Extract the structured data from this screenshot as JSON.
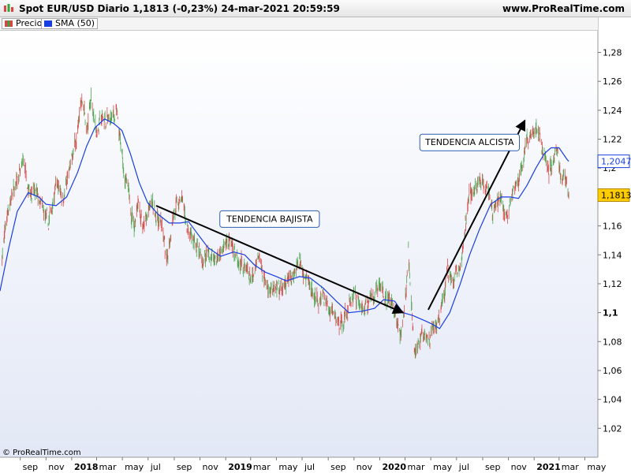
{
  "header": {
    "title": "Spot EUR/USD Diario 1,1813 (-0,23%) 24-mar-2021 20:59:59",
    "site": "www.ProRealTime.com"
  },
  "legend": [
    {
      "label": "Precio",
      "color": "#5a9e5a",
      "icon": "candlestick-icon"
    },
    {
      "label": "SMA (50)",
      "color": "#1a3fe0",
      "icon": "line-icon"
    }
  ],
  "copyright": "© ProRealTime.com",
  "chart_data": {
    "type": "line",
    "y_axis_side": "right",
    "ylim": [
      1.0,
      1.295
    ],
    "grid": false,
    "y_ticks": [
      {
        "v": 1.28,
        "label": "1,28"
      },
      {
        "v": 1.26,
        "label": "1,26"
      },
      {
        "v": 1.24,
        "label": "1,24"
      },
      {
        "v": 1.22,
        "label": "1,22"
      },
      {
        "v": 1.2,
        "label": "1,2"
      },
      {
        "v": 1.18,
        "label": "1,18"
      },
      {
        "v": 1.16,
        "label": "1,16"
      },
      {
        "v": 1.14,
        "label": "1,14"
      },
      {
        "v": 1.12,
        "label": "1,12"
      },
      {
        "v": 1.1,
        "label": "1,1",
        "bold": true
      },
      {
        "v": 1.08,
        "label": "1,08"
      },
      {
        "v": 1.06,
        "label": "1,06"
      },
      {
        "v": 1.04,
        "label": "1,04"
      },
      {
        "v": 1.02,
        "label": "1,02"
      }
    ],
    "x_ticks": [
      {
        "t": "2017-09",
        "label": "sep"
      },
      {
        "t": "2017-11",
        "label": "nov"
      },
      {
        "t": "2018-01",
        "label": "2018",
        "bold": true
      },
      {
        "t": "2018-03",
        "label": "mar"
      },
      {
        "t": "2018-05",
        "label": "may"
      },
      {
        "t": "2018-07",
        "label": "jul"
      },
      {
        "t": "2018-09",
        "label": "sep"
      },
      {
        "t": "2018-11",
        "label": "nov"
      },
      {
        "t": "2019-01",
        "label": "2019",
        "bold": true
      },
      {
        "t": "2019-03",
        "label": "mar"
      },
      {
        "t": "2019-05",
        "label": "may"
      },
      {
        "t": "2019-07",
        "label": "jul"
      },
      {
        "t": "2019-09",
        "label": "sep"
      },
      {
        "t": "2019-11",
        "label": "nov"
      },
      {
        "t": "2020-01",
        "label": "2020",
        "bold": true
      },
      {
        "t": "2020-03",
        "label": "mar"
      },
      {
        "t": "2020-05",
        "label": "may"
      },
      {
        "t": "2020-07",
        "label": "jul"
      },
      {
        "t": "2020-09",
        "label": "sep"
      },
      {
        "t": "2020-11",
        "label": "nov"
      },
      {
        "t": "2021-01",
        "label": "2021",
        "bold": true
      },
      {
        "t": "2021-03",
        "label": "mar"
      },
      {
        "t": "2021-05",
        "label": "may"
      }
    ],
    "x_range": [
      "2017-07-15",
      "2021-06-01"
    ],
    "price_path": [
      [
        "2017-07-20",
        1.14
      ],
      [
        "2017-08-05",
        1.175
      ],
      [
        "2017-08-25",
        1.19
      ],
      [
        "2017-09-08",
        1.205
      ],
      [
        "2017-09-25",
        1.185
      ],
      [
        "2017-10-10",
        1.18
      ],
      [
        "2017-10-25",
        1.17
      ],
      [
        "2017-11-07",
        1.16
      ],
      [
        "2017-11-25",
        1.19
      ],
      [
        "2017-12-12",
        1.18
      ],
      [
        "2017-12-29",
        1.2
      ],
      [
        "2018-01-15",
        1.225
      ],
      [
        "2018-01-26",
        1.25
      ],
      [
        "2018-02-08",
        1.225
      ],
      [
        "2018-02-16",
        1.25
      ],
      [
        "2018-03-01",
        1.225
      ],
      [
        "2018-03-15",
        1.235
      ],
      [
        "2018-03-30",
        1.232
      ],
      [
        "2018-04-17",
        1.238
      ],
      [
        "2018-04-28",
        1.212
      ],
      [
        "2018-05-10",
        1.19
      ],
      [
        "2018-05-29",
        1.16
      ],
      [
        "2018-06-07",
        1.18
      ],
      [
        "2018-06-20",
        1.158
      ],
      [
        "2018-07-09",
        1.175
      ],
      [
        "2018-07-20",
        1.168
      ],
      [
        "2018-08-02",
        1.16
      ],
      [
        "2018-08-15",
        1.134
      ],
      [
        "2018-08-28",
        1.168
      ],
      [
        "2018-09-20",
        1.178
      ],
      [
        "2018-10-05",
        1.152
      ],
      [
        "2018-10-20",
        1.15
      ],
      [
        "2018-11-05",
        1.135
      ],
      [
        "2018-11-20",
        1.14
      ],
      [
        "2018-12-10",
        1.138
      ],
      [
        "2019-01-10",
        1.15
      ],
      [
        "2019-01-28",
        1.14
      ],
      [
        "2019-02-15",
        1.13
      ],
      [
        "2019-03-07",
        1.122
      ],
      [
        "2019-03-20",
        1.137
      ],
      [
        "2019-04-05",
        1.122
      ],
      [
        "2019-04-25",
        1.113
      ],
      [
        "2019-05-20",
        1.116
      ],
      [
        "2019-06-10",
        1.128
      ],
      [
        "2019-06-25",
        1.138
      ],
      [
        "2019-07-15",
        1.123
      ],
      [
        "2019-08-01",
        1.108
      ],
      [
        "2019-08-20",
        1.112
      ],
      [
        "2019-09-05",
        1.1
      ],
      [
        "2019-09-30",
        1.092
      ],
      [
        "2019-10-15",
        1.1
      ],
      [
        "2019-11-01",
        1.115
      ],
      [
        "2019-11-20",
        1.102
      ],
      [
        "2019-12-05",
        1.108
      ],
      [
        "2019-12-31",
        1.12
      ],
      [
        "2020-01-15",
        1.11
      ],
      [
        "2020-02-03",
        1.105
      ],
      [
        "2020-02-20",
        1.08
      ],
      [
        "2020-03-05",
        1.12
      ],
      [
        "2020-03-09",
        1.14
      ],
      [
        "2020-03-23",
        1.07
      ],
      [
        "2020-04-05",
        1.085
      ],
      [
        "2020-04-25",
        1.08
      ],
      [
        "2020-05-15",
        1.09
      ],
      [
        "2020-06-01",
        1.11
      ],
      [
        "2020-06-10",
        1.13
      ],
      [
        "2020-06-25",
        1.12
      ],
      [
        "2020-07-15",
        1.14
      ],
      [
        "2020-07-31",
        1.18
      ],
      [
        "2020-08-15",
        1.185
      ],
      [
        "2020-08-31",
        1.195
      ],
      [
        "2020-09-15",
        1.185
      ],
      [
        "2020-09-25",
        1.165
      ],
      [
        "2020-10-10",
        1.18
      ],
      [
        "2020-10-30",
        1.165
      ],
      [
        "2020-11-10",
        1.182
      ],
      [
        "2020-11-25",
        1.192
      ],
      [
        "2020-12-10",
        1.212
      ],
      [
        "2020-12-30",
        1.228
      ],
      [
        "2021-01-06",
        1.232
      ],
      [
        "2021-01-20",
        1.215
      ],
      [
        "2021-02-05",
        1.198
      ],
      [
        "2021-02-25",
        1.212
      ],
      [
        "2021-03-05",
        1.192
      ],
      [
        "2021-03-15",
        1.195
      ],
      [
        "2021-03-24",
        1.1813
      ]
    ],
    "series": [
      {
        "name": "SMA (50)",
        "color": "#1a3fe0",
        "points": [
          [
            "2017-07-15",
            1.115
          ],
          [
            "2017-08-05",
            1.145
          ],
          [
            "2017-08-25",
            1.17
          ],
          [
            "2017-09-20",
            1.183
          ],
          [
            "2017-10-15",
            1.18
          ],
          [
            "2017-11-01",
            1.175
          ],
          [
            "2017-11-25",
            1.174
          ],
          [
            "2017-12-20",
            1.18
          ],
          [
            "2018-01-15",
            1.197
          ],
          [
            "2018-02-05",
            1.215
          ],
          [
            "2018-02-25",
            1.228
          ],
          [
            "2018-03-20",
            1.234
          ],
          [
            "2018-04-10",
            1.231
          ],
          [
            "2018-04-30",
            1.226
          ],
          [
            "2018-05-20",
            1.21
          ],
          [
            "2018-06-10",
            1.19
          ],
          [
            "2018-06-30",
            1.176
          ],
          [
            "2018-07-25",
            1.168
          ],
          [
            "2018-08-20",
            1.162
          ],
          [
            "2018-09-15",
            1.162
          ],
          [
            "2018-10-05",
            1.163
          ],
          [
            "2018-10-25",
            1.155
          ],
          [
            "2018-11-20",
            1.145
          ],
          [
            "2018-12-20",
            1.139
          ],
          [
            "2019-01-20",
            1.142
          ],
          [
            "2019-02-15",
            1.14
          ],
          [
            "2019-03-10",
            1.133
          ],
          [
            "2019-04-05",
            1.128
          ],
          [
            "2019-05-01",
            1.125
          ],
          [
            "2019-05-25",
            1.122
          ],
          [
            "2019-06-25",
            1.125
          ],
          [
            "2019-07-20",
            1.124
          ],
          [
            "2019-08-20",
            1.117
          ],
          [
            "2019-09-20",
            1.108
          ],
          [
            "2019-10-20",
            1.1
          ],
          [
            "2019-11-20",
            1.101
          ],
          [
            "2019-12-20",
            1.103
          ],
          [
            "2020-01-10",
            1.109
          ],
          [
            "2020-02-05",
            1.108
          ],
          [
            "2020-02-25",
            1.1
          ],
          [
            "2020-03-20",
            1.098
          ],
          [
            "2020-04-20",
            1.094
          ],
          [
            "2020-05-05",
            1.092
          ],
          [
            "2020-05-22",
            1.089
          ],
          [
            "2020-06-15",
            1.1
          ],
          [
            "2020-07-10",
            1.12
          ],
          [
            "2020-08-01",
            1.14
          ],
          [
            "2020-08-25",
            1.158
          ],
          [
            "2020-09-20",
            1.175
          ],
          [
            "2020-10-15",
            1.18
          ],
          [
            "2020-11-05",
            1.18
          ],
          [
            "2020-11-25",
            1.179
          ],
          [
            "2020-12-15",
            1.188
          ],
          [
            "2021-01-05",
            1.2
          ],
          [
            "2021-01-25",
            1.21
          ],
          [
            "2021-02-10",
            1.214
          ],
          [
            "2021-03-01",
            1.214
          ],
          [
            "2021-03-20",
            1.206
          ],
          [
            "2021-03-24",
            1.2047
          ]
        ]
      }
    ],
    "price_label": {
      "label": "1,1813",
      "value": 1.1813,
      "bg": "#ffcc00"
    },
    "sma_label": {
      "label": "1,2047",
      "value": 1.2047,
      "color": "#1a3fe0"
    },
    "annotations": [
      {
        "text": "TENDENCIA BAJISTA",
        "at": [
          "2019-04-15",
          1.165
        ]
      },
      {
        "text": "TENDENCIA ALCISTA",
        "at": [
          "2020-08-01",
          1.218
        ]
      }
    ],
    "arrows": [
      {
        "from": [
          "2018-07-20",
          1.174
        ],
        "to": [
          "2020-02-25",
          1.1
        ]
      },
      {
        "from": [
          "2020-04-25",
          1.102
        ],
        "to": [
          "2020-12-10",
          1.233
        ]
      }
    ]
  }
}
